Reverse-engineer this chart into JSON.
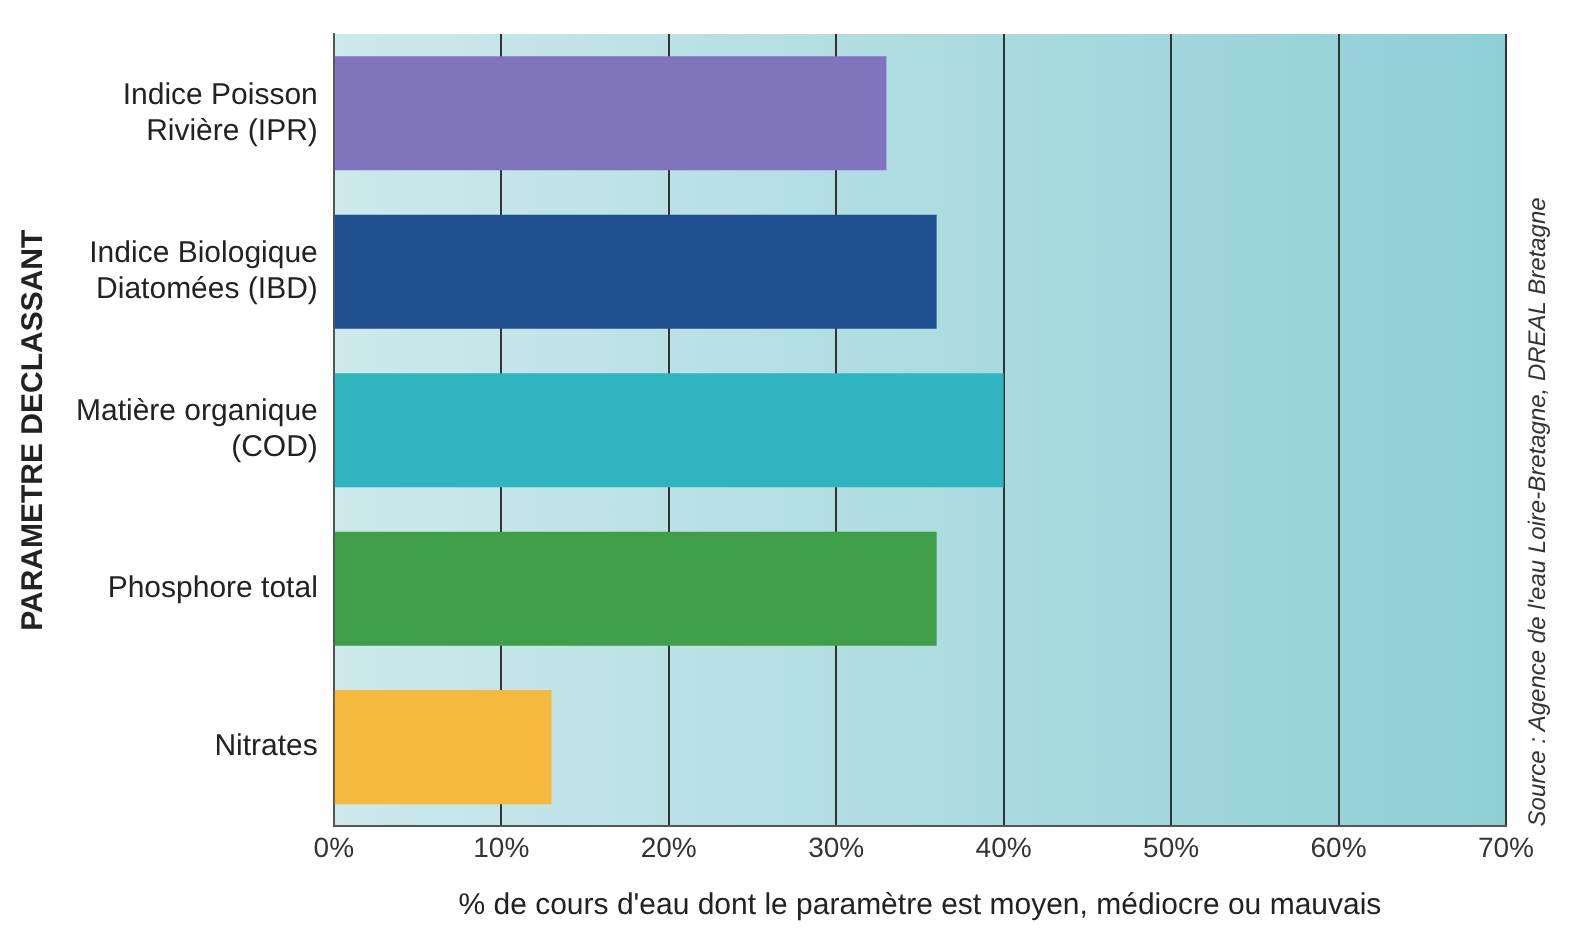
{
  "chart_data": {
    "type": "bar",
    "orientation": "horizontal",
    "categories": [
      "Indice Poisson Rivière (IPR)",
      "Indice Biologique Diatomées (IBD)",
      "Matière organique (COD)",
      "Phosphore total",
      "Nitrates"
    ],
    "values": [
      33,
      36,
      40,
      36,
      13
    ],
    "colors": [
      "#7f74bd",
      "#1f4f8f",
      "#2fb5c0",
      "#3f9f48",
      "#f5b940"
    ],
    "xlim": [
      0,
      70
    ],
    "xticks": [
      {
        "value": 0,
        "label": "0%"
      },
      {
        "value": 10,
        "label": "10%"
      },
      {
        "value": 20,
        "label": "20%"
      },
      {
        "value": 30,
        "label": "30%"
      },
      {
        "value": 40,
        "label": "40%"
      },
      {
        "value": 50,
        "label": "50%"
      },
      {
        "value": 60,
        "label": "60%"
      },
      {
        "value": 70,
        "label": "70%"
      }
    ],
    "xlabel": "% de cours d'eau dont le paramètre est moyen, médiocre ou mauvais",
    "ylabel": "PARAMETRE DECLASSANT",
    "annotations": [
      "Source : Agence de l'eau Loire-Bretagne, DREAL Bretagne"
    ],
    "grid": "x",
    "legend": false
  }
}
